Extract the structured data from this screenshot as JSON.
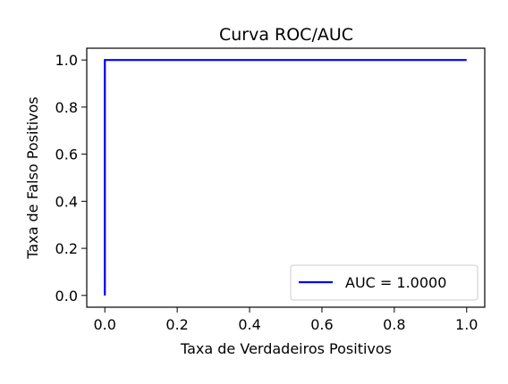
{
  "chart_data": {
    "type": "line",
    "title": "Curva ROC/AUC",
    "xlabel": "Taxa de Verdadeiros Positivos",
    "ylabel": "Taxa de Falso Positivos",
    "xlim": [
      -0.05,
      1.05
    ],
    "ylim": [
      -0.05,
      1.05
    ],
    "xticks": [
      0.0,
      0.2,
      0.4,
      0.6,
      0.8,
      1.0
    ],
    "xtick_labels": [
      "0.0",
      "0.2",
      "0.4",
      "0.6",
      "0.8",
      "1.0"
    ],
    "yticks": [
      0.0,
      0.2,
      0.4,
      0.6,
      0.8,
      1.0
    ],
    "ytick_labels": [
      "0.0",
      "0.2",
      "0.4",
      "0.6",
      "0.8",
      "1.0"
    ],
    "grid": false,
    "legend_position": "lower-right",
    "series": [
      {
        "name": "AUC = 1.0000",
        "color": "#0000ff",
        "x": [
          0.0,
          0.0,
          1.0
        ],
        "y": [
          0.0,
          1.0,
          1.0
        ]
      }
    ]
  }
}
